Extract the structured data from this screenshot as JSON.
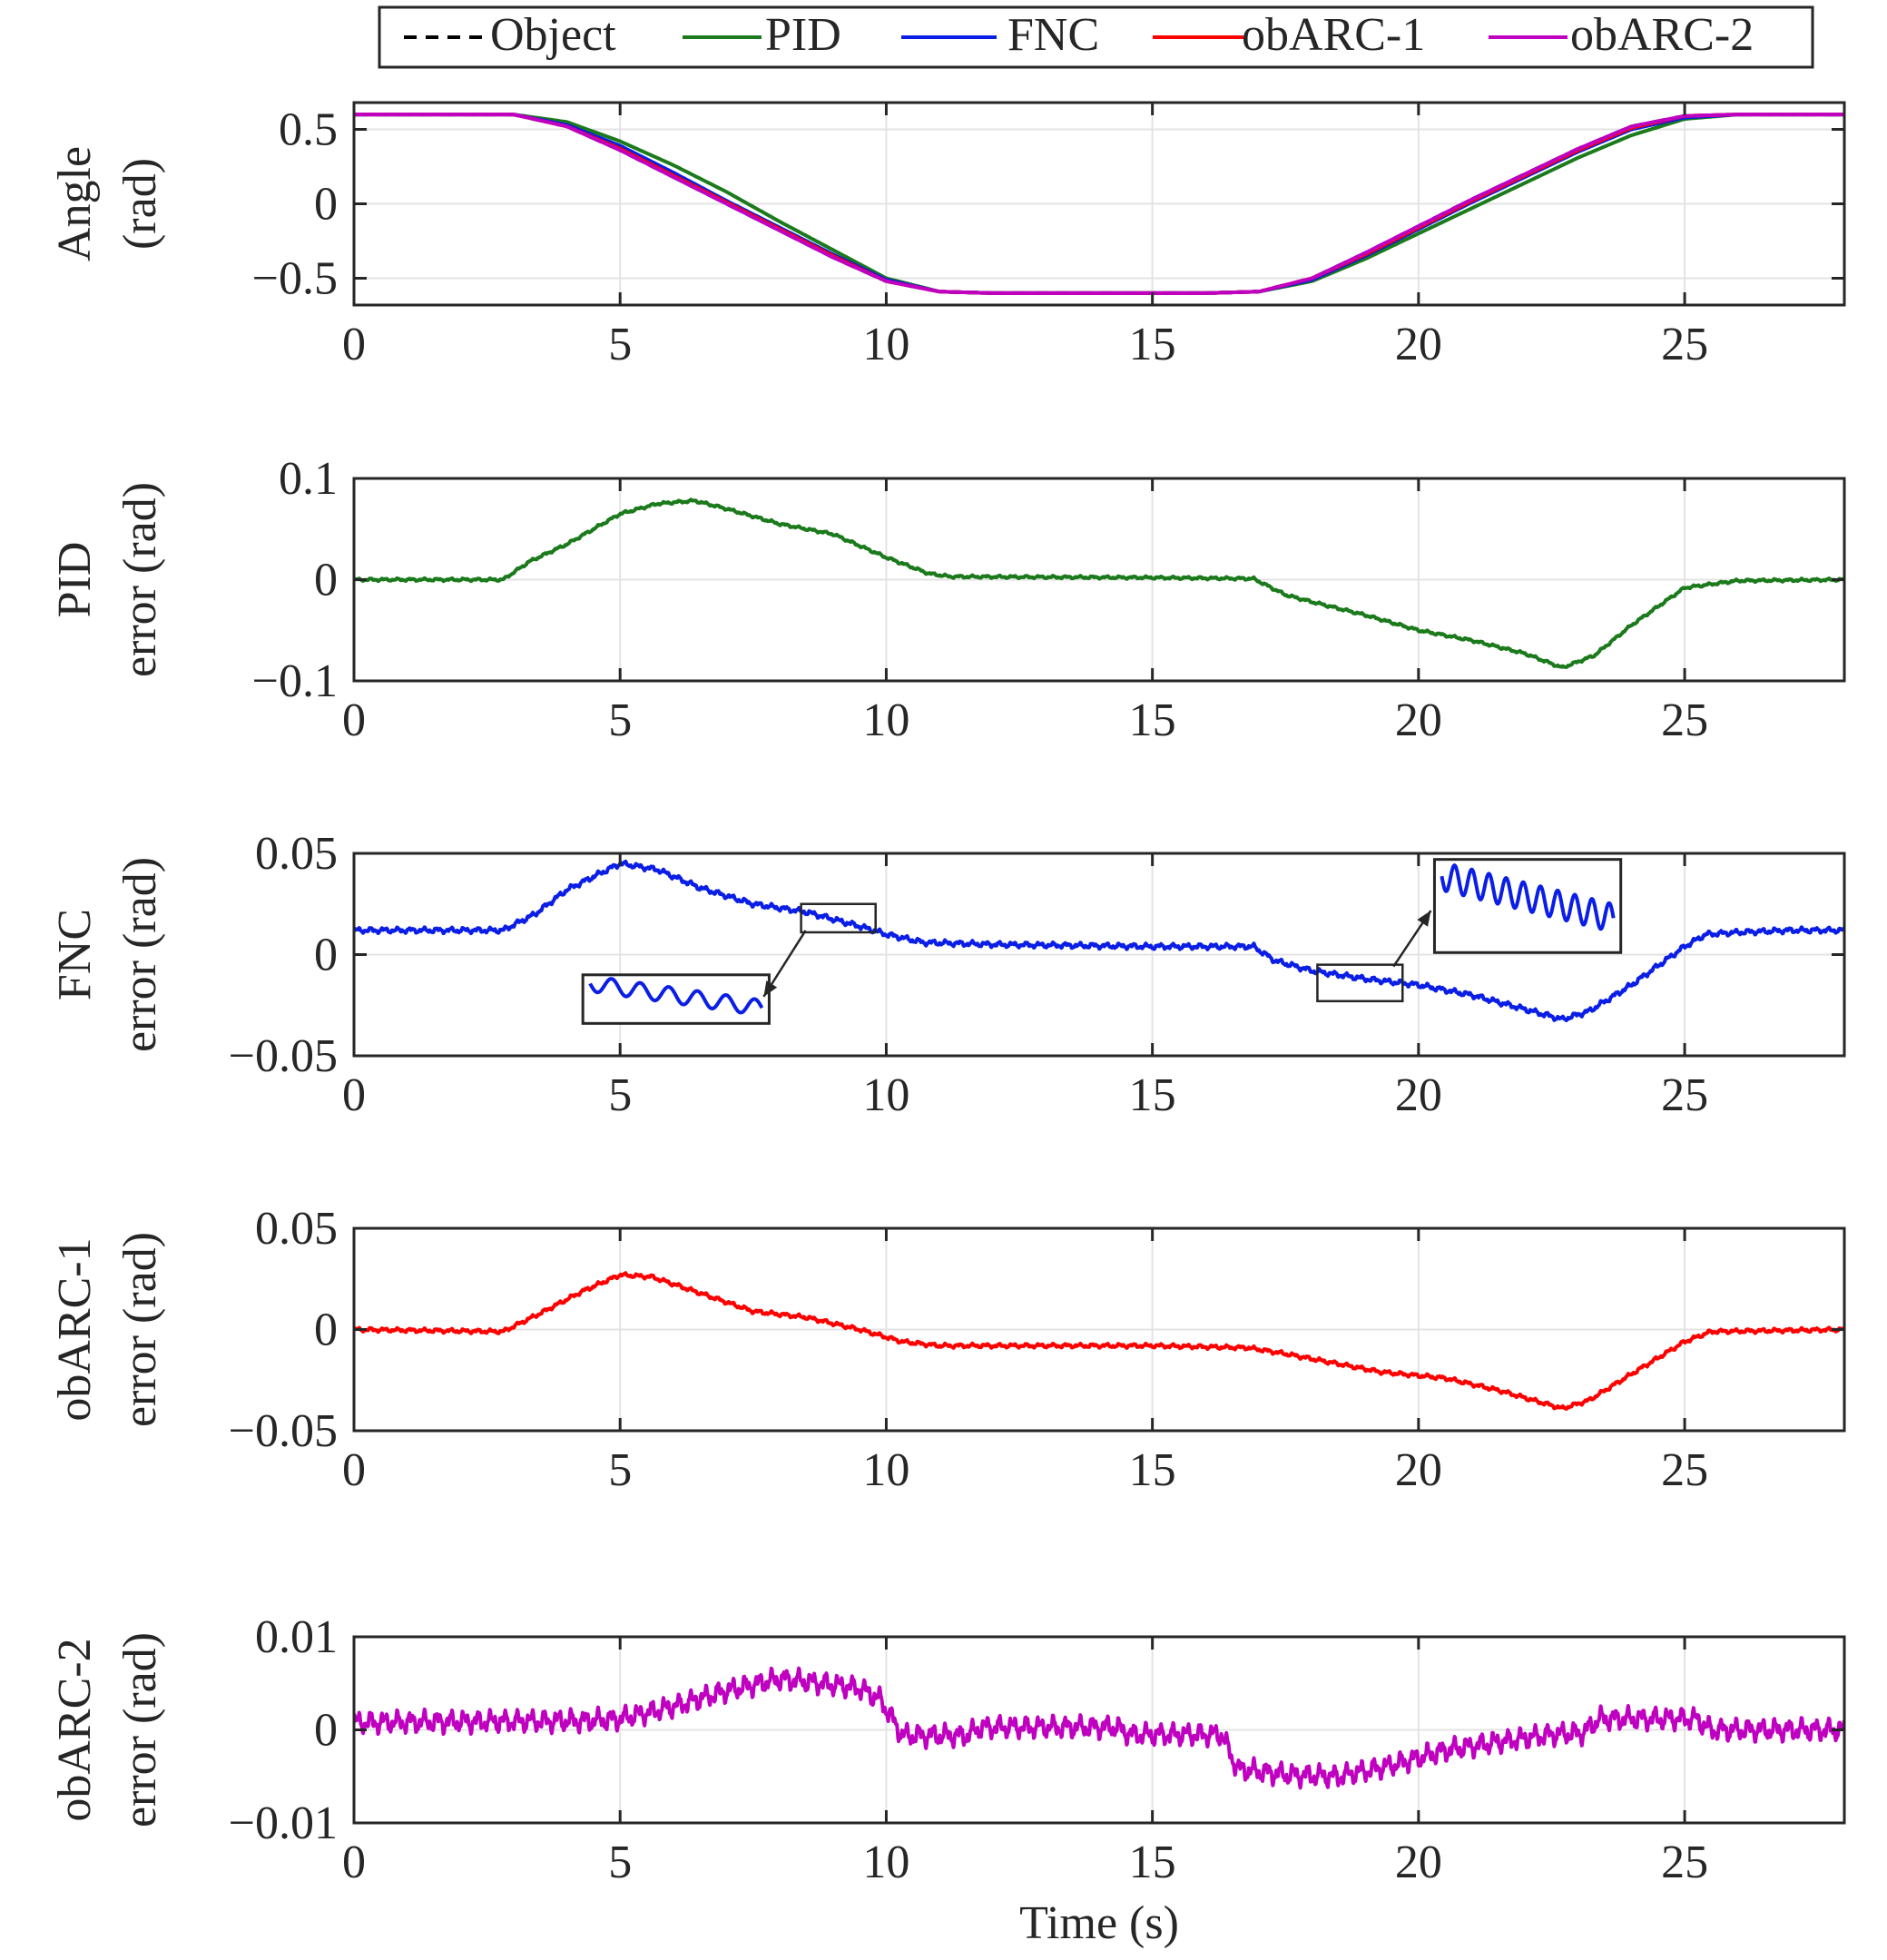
{
  "legend": {
    "placement": "top",
    "entries": [
      {
        "label": "Object",
        "color": "#000000",
        "dash": "dashed"
      },
      {
        "label": "PID",
        "color": "#1b7a1b",
        "dash": "solid"
      },
      {
        "label": "FNC",
        "color": "#0a1ee6",
        "dash": "solid"
      },
      {
        "label": "obARC-1",
        "color": "#ff0000",
        "dash": "solid"
      },
      {
        "label": "obARC-2",
        "color": "#c000c0",
        "dash": "solid"
      }
    ]
  },
  "xlabel": "Time (s)",
  "chart_data": [
    {
      "type": "line",
      "ylabel": [
        "Angle",
        "(rad)"
      ],
      "xlim": [
        0,
        28
      ],
      "ylim": [
        -0.68,
        0.68
      ],
      "xticks": [
        0,
        5,
        10,
        15,
        20,
        25
      ],
      "xtick_labels": [
        "0",
        "5",
        "10",
        "15",
        "20",
        "25"
      ],
      "yticks": [
        0.5,
        0,
        -0.5
      ],
      "ytick_labels": [
        "0.5",
        "0",
        "−0.5"
      ],
      "grid": true,
      "series": [
        {
          "name": "Object",
          "color": "#000000",
          "dash": "dashed",
          "x": [
            0,
            3,
            4,
            5,
            6,
            7,
            8,
            9,
            10,
            11,
            12,
            13,
            14,
            15,
            16,
            17,
            18,
            19,
            20,
            21,
            22,
            23,
            24,
            25,
            26,
            27,
            28
          ],
          "y": [
            0.6,
            0.6,
            0.52,
            0.36,
            0.18,
            0.0,
            -0.18,
            -0.36,
            -0.52,
            -0.59,
            -0.6,
            -0.6,
            -0.6,
            -0.6,
            -0.6,
            -0.59,
            -0.5,
            -0.33,
            -0.15,
            0.03,
            0.2,
            0.37,
            0.52,
            0.59,
            0.6,
            0.6,
            0.6
          ]
        },
        {
          "name": "PID",
          "color": "#1b7a1b",
          "dash": "solid",
          "x": [
            0,
            3,
            4,
            5,
            6,
            7,
            8,
            9,
            10,
            11,
            12,
            13,
            14,
            15,
            16,
            17,
            18,
            19,
            20,
            21,
            22,
            23,
            24,
            25,
            26,
            27,
            28
          ],
          "y": [
            0.6,
            0.6,
            0.55,
            0.42,
            0.26,
            0.08,
            -0.12,
            -0.31,
            -0.5,
            -0.59,
            -0.6,
            -0.6,
            -0.6,
            -0.6,
            -0.6,
            -0.59,
            -0.52,
            -0.37,
            -0.2,
            -0.03,
            0.14,
            0.31,
            0.46,
            0.57,
            0.6,
            0.6,
            0.6
          ]
        },
        {
          "name": "FNC",
          "color": "#0a1ee6",
          "dash": "solid",
          "x": [
            0,
            3,
            4,
            5,
            6,
            7,
            8,
            9,
            10,
            11,
            12,
            13,
            14,
            15,
            16,
            17,
            18,
            19,
            20,
            21,
            22,
            23,
            24,
            25,
            26,
            27,
            28
          ],
          "y": [
            0.6,
            0.6,
            0.53,
            0.39,
            0.21,
            0.02,
            -0.16,
            -0.34,
            -0.51,
            -0.59,
            -0.6,
            -0.6,
            -0.6,
            -0.6,
            -0.6,
            -0.59,
            -0.51,
            -0.35,
            -0.17,
            0.01,
            0.18,
            0.35,
            0.5,
            0.58,
            0.6,
            0.6,
            0.6
          ]
        },
        {
          "name": "obARC-1",
          "color": "#ff0000",
          "dash": "solid",
          "x": [
            0,
            3,
            4,
            5,
            6,
            7,
            8,
            9,
            10,
            11,
            12,
            13,
            14,
            15,
            16,
            17,
            18,
            19,
            20,
            21,
            22,
            23,
            24,
            25,
            26,
            27,
            28
          ],
          "y": [
            0.6,
            0.6,
            0.52,
            0.37,
            0.19,
            0.01,
            -0.17,
            -0.35,
            -0.52,
            -0.59,
            -0.6,
            -0.6,
            -0.6,
            -0.6,
            -0.6,
            -0.59,
            -0.5,
            -0.34,
            -0.16,
            0.02,
            0.19,
            0.36,
            0.51,
            0.59,
            0.6,
            0.6,
            0.6
          ]
        },
        {
          "name": "obARC-2",
          "color": "#c000c0",
          "dash": "solid",
          "x": [
            0,
            3,
            4,
            5,
            6,
            7,
            8,
            9,
            10,
            11,
            12,
            13,
            14,
            15,
            16,
            17,
            18,
            19,
            20,
            21,
            22,
            23,
            24,
            25,
            26,
            27,
            28
          ],
          "y": [
            0.6,
            0.6,
            0.52,
            0.36,
            0.18,
            0.0,
            -0.18,
            -0.36,
            -0.52,
            -0.59,
            -0.6,
            -0.6,
            -0.6,
            -0.6,
            -0.6,
            -0.59,
            -0.5,
            -0.33,
            -0.15,
            0.03,
            0.2,
            0.37,
            0.52,
            0.59,
            0.6,
            0.6,
            0.6
          ]
        }
      ]
    },
    {
      "type": "line",
      "ylabel": [
        "PID",
        "error (rad)"
      ],
      "xlim": [
        0,
        28
      ],
      "ylim": [
        -0.1,
        0.1
      ],
      "xticks": [
        0,
        5,
        10,
        15,
        20,
        25
      ],
      "xtick_labels": [
        "0",
        "5",
        "10",
        "15",
        "20",
        "25"
      ],
      "yticks": [
        0.1,
        0,
        -0.1
      ],
      "ytick_labels": [
        "0.1",
        "0",
        "−0.1"
      ],
      "grid": true,
      "series": [
        {
          "name": "PID",
          "color": "#1b7a1b",
          "noise": 0.0008,
          "x": [
            0,
            2.8,
            3.3,
            4.0,
            5.0,
            5.7,
            6.4,
            7.0,
            8.0,
            9.0,
            10.0,
            10.8,
            11.2,
            15.0,
            16.9,
            17.5,
            18.0,
            19.0,
            20.0,
            21.0,
            22.0,
            22.7,
            23.3,
            24.0,
            25.0,
            26.0,
            28.0
          ],
          "y": [
            0.0,
            0.0,
            0.018,
            0.035,
            0.065,
            0.075,
            0.078,
            0.07,
            0.055,
            0.045,
            0.022,
            0.006,
            0.003,
            0.002,
            0.001,
            -0.015,
            -0.022,
            -0.035,
            -0.05,
            -0.06,
            -0.073,
            -0.087,
            -0.075,
            -0.045,
            -0.008,
            -0.001,
            0.0
          ]
        }
      ]
    },
    {
      "type": "line",
      "ylabel": [
        "FNC",
        "error (rad)"
      ],
      "xlim": [
        0,
        28
      ],
      "ylim": [
        -0.05,
        0.05
      ],
      "xticks": [
        0,
        5,
        10,
        15,
        20,
        25
      ],
      "xtick_labels": [
        "0",
        "5",
        "10",
        "15",
        "20",
        "25"
      ],
      "yticks": [
        0.05,
        0,
        -0.05
      ],
      "ytick_labels": [
        "0.05",
        "0",
        "−0.05"
      ],
      "grid": true,
      "series": [
        {
          "name": "FNC",
          "color": "#0a1ee6",
          "noise": 0.0008,
          "x": [
            0,
            2.8,
            3.4,
            4.0,
            5.0,
            5.7,
            6.5,
            7.5,
            8.5,
            9.5,
            10.0,
            10.7,
            12.0,
            15.0,
            16.9,
            17.3,
            18.0,
            19.0,
            20.0,
            21.0,
            22.0,
            22.7,
            23.2,
            24.0,
            25.0,
            25.4,
            26.0,
            27.0,
            28.0
          ],
          "y": [
            0.012,
            0.012,
            0.02,
            0.032,
            0.045,
            0.042,
            0.033,
            0.025,
            0.021,
            0.014,
            0.01,
            0.006,
            0.005,
            0.004,
            0.004,
            -0.003,
            -0.008,
            -0.012,
            -0.015,
            -0.02,
            -0.027,
            -0.032,
            -0.028,
            -0.015,
            0.004,
            0.01,
            0.011,
            0.012,
            0.012
          ]
        }
      ],
      "insets": [
        {
          "target_x": [
            8.4,
            9.8
          ],
          "target_y": [
            0.011,
            0.025
          ],
          "inset_x": [
            4.3,
            7.8
          ],
          "inset_y": [
            -0.034,
            -0.01
          ]
        },
        {
          "target_x": [
            18.1,
            19.7
          ],
          "target_y": [
            -0.023,
            -0.005
          ],
          "inset_x": [
            20.3,
            23.8
          ],
          "inset_y": [
            0.001,
            0.047
          ]
        }
      ]
    },
    {
      "type": "line",
      "ylabel": [
        "obARC-1",
        "error (rad)"
      ],
      "xlim": [
        0,
        28
      ],
      "ylim": [
        -0.05,
        0.05
      ],
      "xticks": [
        0,
        5,
        10,
        15,
        20,
        25
      ],
      "xtick_labels": [
        "0",
        "5",
        "10",
        "15",
        "20",
        "25"
      ],
      "yticks": [
        0.05,
        0,
        -0.05
      ],
      "ytick_labels": [
        "0.05",
        "0",
        "−0.05"
      ],
      "grid": true,
      "series": [
        {
          "name": "obARC-1",
          "color": "#ff0000",
          "noise": 0.0006,
          "x": [
            0,
            2.8,
            3.5,
            4.3,
            5.0,
            5.6,
            6.5,
            7.5,
            8.5,
            9.5,
            10.3,
            11.0,
            15.0,
            16.8,
            17.5,
            18.5,
            19.3,
            20.5,
            21.5,
            22.7,
            23.2,
            24.0,
            25.0,
            25.5,
            28.0
          ],
          "y": [
            0.0,
            -0.001,
            0.008,
            0.019,
            0.027,
            0.026,
            0.018,
            0.009,
            0.006,
            0.0,
            -0.006,
            -0.008,
            -0.008,
            -0.009,
            -0.012,
            -0.017,
            -0.021,
            -0.024,
            -0.03,
            -0.039,
            -0.035,
            -0.022,
            -0.006,
            -0.001,
            0.0
          ]
        }
      ]
    },
    {
      "type": "line",
      "ylabel": [
        "obARC-2",
        "error (rad)"
      ],
      "xlim": [
        0,
        28
      ],
      "ylim": [
        -0.01,
        0.01
      ],
      "xticks": [
        0,
        5,
        10,
        15,
        20,
        25
      ],
      "xtick_labels": [
        "0",
        "5",
        "10",
        "15",
        "20",
        "25"
      ],
      "yticks": [
        0.01,
        0,
        -0.01
      ],
      "ytick_labels": [
        "0.01",
        "0",
        "−0.01"
      ],
      "grid": true,
      "series": [
        {
          "name": "obARC-2",
          "color": "#c000c0",
          "noise": 0.0007,
          "x": [
            0,
            4.5,
            5.0,
            6.0,
            7.0,
            8.0,
            8.5,
            9.5,
            9.9,
            10.3,
            11.5,
            11.8,
            14.3,
            14.6,
            16.3,
            16.6,
            17.5,
            18.5,
            19.5,
            20.5,
            21.5,
            22.5,
            23.1,
            23.4,
            25.2,
            25.5,
            28.0
          ],
          "y": [
            0.0008,
            0.001,
            0.0012,
            0.0025,
            0.0042,
            0.0055,
            0.0052,
            0.0045,
            0.0032,
            -0.0006,
            -0.0006,
            0.0003,
            0.0003,
            -0.0005,
            -0.0005,
            -0.0042,
            -0.0048,
            -0.005,
            -0.0038,
            -0.0022,
            -0.0013,
            -0.0005,
            -0.0003,
            0.0012,
            0.0012,
            0.0,
            0.0
          ]
        }
      ]
    }
  ]
}
